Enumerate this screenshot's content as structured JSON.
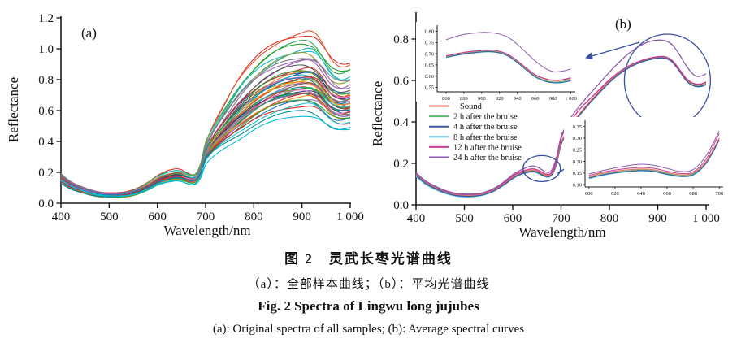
{
  "caption": {
    "line1_zh": "图 2　灵武长枣光谱曲线",
    "line2_zh": "（a）：全部样本曲线；（b）：平均光谱曲线",
    "line3_en": "Fig. 2   Spectra of Lingwu long jujubes",
    "line4_en": "(a): Original spectra of all samples; (b): Average spectral curves"
  },
  "chart_data": [
    {
      "type": "line",
      "panel_label": "(a)",
      "description": "Original reflectance spectra of all jujube samples (~45 overlapping colored curves)",
      "xlabel": "Wavelength/nm",
      "ylabel": "Reflectance",
      "xlim": [
        400,
        1000
      ],
      "ylim": [
        0,
        1.2
      ],
      "xticks": [
        400,
        500,
        600,
        700,
        800,
        900,
        1000
      ],
      "xtick_labels": [
        "400",
        "500",
        "600",
        "700",
        "800",
        "900",
        "1 000"
      ],
      "yticks": [
        0,
        0.2,
        0.4,
        0.6,
        0.8,
        1.0,
        1.2
      ],
      "ytick_labels": [
        "0.0",
        "0.2",
        "0.4",
        "0.6",
        "0.8",
        "1.0",
        "1.2"
      ],
      "grid": false,
      "x": [
        400,
        420,
        440,
        460,
        480,
        500,
        520,
        540,
        560,
        580,
        600,
        610,
        620,
        630,
        640,
        650,
        660,
        670,
        680,
        690,
        700,
        710,
        720,
        740,
        760,
        780,
        800,
        820,
        840,
        860,
        880,
        900,
        910,
        920,
        930,
        940,
        950,
        960,
        970,
        980,
        990,
        1000
      ],
      "base_shape": [
        0.21,
        0.154,
        0.119,
        0.091,
        0.073,
        0.066,
        0.067,
        0.077,
        0.101,
        0.14,
        0.189,
        0.207,
        0.221,
        0.229,
        0.235,
        0.229,
        0.213,
        0.2,
        0.21,
        0.28,
        0.42,
        0.483,
        0.538,
        0.622,
        0.699,
        0.769,
        0.836,
        0.892,
        0.934,
        0.965,
        0.986,
        0.999,
        1.0,
        0.993,
        0.972,
        0.934,
        0.888,
        0.846,
        0.822,
        0.811,
        0.814,
        0.825
      ],
      "samples_peak_color": [
        [
          1.11,
          "#d93025"
        ],
        [
          1.095,
          "#e4572e"
        ],
        [
          1.05,
          "#34a853"
        ],
        [
          1.025,
          "#2ca02c"
        ],
        [
          1.0,
          "#17becf"
        ],
        [
          0.985,
          "#20b2aa"
        ],
        [
          0.965,
          "#8f9a27"
        ],
        [
          0.95,
          "#7f7f7f"
        ],
        [
          0.935,
          "#9467bd"
        ],
        [
          0.92,
          "#a05da5"
        ],
        [
          0.88,
          "#555555"
        ],
        [
          0.87,
          "#1f77b4"
        ],
        [
          0.862,
          "#d62728"
        ],
        [
          0.855,
          "#ff7f0e"
        ],
        [
          0.848,
          "#2ca02c"
        ],
        [
          0.84,
          "#8c564b"
        ],
        [
          0.833,
          "#393b79"
        ],
        [
          0.826,
          "#17becf"
        ],
        [
          0.82,
          "#e377c2"
        ],
        [
          0.813,
          "#2e8b57"
        ],
        [
          0.806,
          "#d62728"
        ],
        [
          0.8,
          "#1f77b4"
        ],
        [
          0.793,
          "#7f7f7f"
        ],
        [
          0.786,
          "#bcbd22"
        ],
        [
          0.78,
          "#9467bd"
        ],
        [
          0.773,
          "#ff7f0e"
        ],
        [
          0.766,
          "#2ca02c"
        ],
        [
          0.76,
          "#8c564b"
        ],
        [
          0.753,
          "#d62728"
        ],
        [
          0.746,
          "#17becf"
        ],
        [
          0.74,
          "#393b79"
        ],
        [
          0.733,
          "#2ca02c"
        ],
        [
          0.726,
          "#e377c2"
        ],
        [
          0.72,
          "#1f77b4"
        ],
        [
          0.713,
          "#7f7f7f"
        ],
        [
          0.706,
          "#d62728"
        ],
        [
          0.7,
          "#2e8b57"
        ],
        [
          0.69,
          "#9467bd"
        ],
        [
          0.68,
          "#ff7f0e"
        ],
        [
          0.67,
          "#1f77b4"
        ],
        [
          0.66,
          "#2ca02c"
        ],
        [
          0.645,
          "#d62728"
        ],
        [
          0.63,
          "#17becf"
        ],
        [
          0.6,
          "#008b9e"
        ],
        [
          0.565,
          "#00bcd4"
        ]
      ]
    },
    {
      "type": "line",
      "panel_label": "(b)",
      "description": "Average spectral curves of sound and bruised jujubes with two zoom insets",
      "xlabel": "Wavelength/nm",
      "ylabel": "Reflectance",
      "xlim": [
        400,
        1000
      ],
      "ylim": [
        0,
        0.8
      ],
      "xticks": [
        400,
        500,
        600,
        700,
        800,
        900,
        1000
      ],
      "xtick_labels": [
        "400",
        "500",
        "600",
        "700",
        "800",
        "900",
        "1 000"
      ],
      "yticks": [
        0,
        0.2,
        0.4,
        0.6,
        0.8
      ],
      "ytick_labels": [
        "0.0",
        "0.2",
        "0.4",
        "0.6",
        "0.8"
      ],
      "grid": false,
      "legend_position": "left-middle",
      "annotation_color": "#3a4fa0",
      "x": [
        400,
        420,
        440,
        460,
        480,
        500,
        520,
        540,
        560,
        580,
        600,
        610,
        620,
        630,
        640,
        650,
        660,
        670,
        680,
        690,
        700,
        710,
        720,
        740,
        760,
        780,
        800,
        820,
        840,
        860,
        880,
        900,
        910,
        920,
        930,
        940,
        950,
        960,
        970,
        980,
        990,
        1000
      ],
      "series": [
        {
          "name": "Sound",
          "color": "#ed6a5e",
          "values": [
            0.15,
            0.11,
            0.085,
            0.065,
            0.052,
            0.047,
            0.048,
            0.055,
            0.072,
            0.1,
            0.135,
            0.148,
            0.158,
            0.164,
            0.168,
            0.164,
            0.152,
            0.143,
            0.15,
            0.2,
            0.3,
            0.345,
            0.385,
            0.445,
            0.5,
            0.55,
            0.598,
            0.638,
            0.668,
            0.69,
            0.705,
            0.714,
            0.715,
            0.71,
            0.695,
            0.668,
            0.635,
            0.605,
            0.588,
            0.58,
            0.582,
            0.59
          ]
        },
        {
          "name": "2 h after the bruise",
          "color": "#58bd6d",
          "values": [
            0.146,
            0.106,
            0.081,
            0.062,
            0.049,
            0.044,
            0.045,
            0.052,
            0.069,
            0.097,
            0.131,
            0.144,
            0.154,
            0.16,
            0.164,
            0.16,
            0.148,
            0.139,
            0.146,
            0.196,
            0.295,
            0.34,
            0.38,
            0.441,
            0.496,
            0.546,
            0.594,
            0.634,
            0.664,
            0.686,
            0.701,
            0.71,
            0.711,
            0.706,
            0.691,
            0.664,
            0.631,
            0.6,
            0.582,
            0.574,
            0.576,
            0.585
          ]
        },
        {
          "name": "4 h after the bruise",
          "color": "#4156a6",
          "values": [
            0.142,
            0.103,
            0.078,
            0.059,
            0.046,
            0.041,
            0.042,
            0.049,
            0.066,
            0.094,
            0.128,
            0.141,
            0.151,
            0.157,
            0.161,
            0.157,
            0.145,
            0.136,
            0.143,
            0.193,
            0.292,
            0.337,
            0.377,
            0.438,
            0.493,
            0.543,
            0.591,
            0.631,
            0.661,
            0.684,
            0.699,
            0.708,
            0.709,
            0.704,
            0.689,
            0.661,
            0.628,
            0.597,
            0.579,
            0.571,
            0.572,
            0.58
          ]
        },
        {
          "name": "8 h after the bruise",
          "color": "#5cc9e0",
          "values": [
            0.137,
            0.098,
            0.073,
            0.055,
            0.043,
            0.038,
            0.04,
            0.047,
            0.064,
            0.092,
            0.126,
            0.139,
            0.149,
            0.155,
            0.159,
            0.155,
            0.143,
            0.134,
            0.141,
            0.191,
            0.29,
            0.335,
            0.375,
            0.436,
            0.491,
            0.541,
            0.589,
            0.629,
            0.66,
            0.683,
            0.698,
            0.707,
            0.708,
            0.703,
            0.688,
            0.66,
            0.627,
            0.596,
            0.578,
            0.57,
            0.571,
            0.579
          ]
        },
        {
          "name": "12 h after the bruise",
          "color": "#c43b92",
          "values": [
            0.153,
            0.113,
            0.088,
            0.068,
            0.055,
            0.05,
            0.051,
            0.058,
            0.075,
            0.104,
            0.14,
            0.153,
            0.163,
            0.17,
            0.174,
            0.17,
            0.158,
            0.148,
            0.155,
            0.21,
            0.32,
            0.368,
            0.405,
            0.465,
            0.512,
            0.558,
            0.603,
            0.641,
            0.67,
            0.691,
            0.706,
            0.715,
            0.716,
            0.711,
            0.696,
            0.669,
            0.637,
            0.607,
            0.59,
            0.582,
            0.584,
            0.593
          ]
        },
        {
          "name": "24 h after the bruise",
          "color": "#8e5bae",
          "values": [
            0.155,
            0.115,
            0.09,
            0.07,
            0.057,
            0.052,
            0.053,
            0.06,
            0.078,
            0.108,
            0.146,
            0.16,
            0.172,
            0.182,
            0.188,
            0.183,
            0.17,
            0.157,
            0.165,
            0.225,
            0.33,
            0.378,
            0.42,
            0.482,
            0.536,
            0.588,
            0.64,
            0.688,
            0.73,
            0.763,
            0.786,
            0.795,
            0.794,
            0.788,
            0.772,
            0.742,
            0.705,
            0.668,
            0.638,
            0.62,
            0.622,
            0.632
          ]
        }
      ],
      "insets": [
        {
          "name": "nir-zoom",
          "xlim": [
            850,
            1005
          ],
          "ylim": [
            0.53,
            0.82
          ],
          "data_range": [
            855,
            1000
          ],
          "xticks": [
            860,
            880,
            900,
            920,
            940,
            960,
            980,
            1000
          ],
          "xtick_labels": [
            "860",
            "880",
            "900",
            "920",
            "940",
            "960",
            "980",
            "1 000"
          ],
          "yticks": [
            0.55,
            0.6,
            0.65,
            0.7,
            0.75,
            0.8
          ],
          "ytick_labels": [
            "0.55",
            "0.60",
            "0.65",
            "0.70",
            "0.75",
            "0.80"
          ]
        },
        {
          "name": "red-edge-zoom",
          "xlim": [
            597,
            703
          ],
          "ylim": [
            0.09,
            0.37
          ],
          "data_range": [
            600,
            700
          ],
          "xticks": [
            600,
            620,
            640,
            660,
            680,
            700
          ],
          "xtick_labels": [
            "600",
            "620",
            "640",
            "660",
            "680",
            "700"
          ],
          "yticks": [
            0.1,
            0.15,
            0.2,
            0.25,
            0.3,
            0.35
          ],
          "ytick_labels": [
            "0.10",
            "0.15",
            "0.20",
            "0.25",
            "0.30",
            "0.35"
          ]
        }
      ],
      "annotations": [
        {
          "type": "zoom-ellipse",
          "cx_nm": 920,
          "cy_reflectance": 0.6,
          "links_to": "nir-zoom"
        },
        {
          "type": "zoom-ellipse",
          "cx_nm": 660,
          "cy_reflectance": 0.175,
          "links_to": "red-edge-zoom"
        }
      ]
    }
  ]
}
